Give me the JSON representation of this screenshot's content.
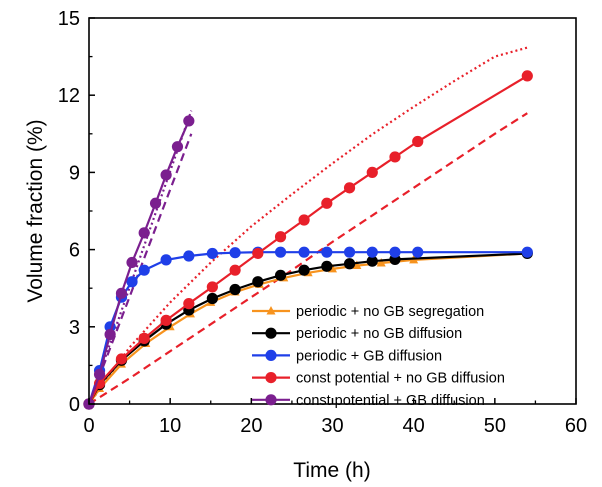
{
  "chart_data": {
    "type": "line",
    "xlabel": "Time (h)",
    "ylabel": "Volume fraction (%)",
    "xlim": [
      0,
      60
    ],
    "ylim": [
      0,
      15
    ],
    "xticks": [
      0,
      10,
      20,
      30,
      40,
      50,
      60
    ],
    "yticks": [
      0,
      3,
      6,
      9,
      12,
      15
    ],
    "legend_position": "bottom-right",
    "grid": false,
    "series": [
      {
        "name": "periodic + no GB segregation",
        "color": "#f7931e",
        "marker": "triangle",
        "x": [
          0,
          1.3,
          4,
          7,
          10,
          12.5,
          15,
          18,
          21,
          24,
          27,
          30,
          33,
          36,
          40,
          54
        ],
        "y": [
          0,
          0.6,
          1.55,
          2.35,
          3.0,
          3.5,
          3.95,
          4.35,
          4.65,
          4.9,
          5.1,
          5.25,
          5.38,
          5.48,
          5.6,
          5.85
        ]
      },
      {
        "name": "periodic + no GB diffusion",
        "color": "#000000",
        "marker": "circle",
        "x": [
          0,
          1.3,
          4,
          6.8,
          9.5,
          12.3,
          15.2,
          18,
          20.8,
          23.6,
          26.5,
          29.3,
          32.1,
          34.9,
          37.7,
          54
        ],
        "y": [
          0,
          0.75,
          1.7,
          2.45,
          3.1,
          3.65,
          4.1,
          4.45,
          4.75,
          5.0,
          5.2,
          5.35,
          5.45,
          5.55,
          5.62,
          5.85
        ]
      },
      {
        "name": "periodic + GB diffusion",
        "color": "#1f3fe8",
        "marker": "circle",
        "x": [
          0,
          1.3,
          2.6,
          4,
          5.3,
          6.8,
          9.5,
          12.3,
          15.2,
          18,
          20.8,
          23.6,
          26.5,
          29.3,
          32.1,
          34.9,
          37.7,
          40.5,
          54
        ],
        "y": [
          0,
          1.3,
          3.0,
          4.15,
          4.75,
          5.2,
          5.6,
          5.75,
          5.85,
          5.88,
          5.9,
          5.9,
          5.9,
          5.9,
          5.9,
          5.9,
          5.9,
          5.9,
          5.9
        ]
      },
      {
        "name": "const potential + no GB diffusion",
        "color": "#e8202a",
        "marker": "circle",
        "x": [
          0,
          1.3,
          4,
          6.8,
          9.5,
          12.3,
          15.2,
          18,
          20.8,
          23.6,
          26.5,
          29.3,
          32.1,
          34.9,
          37.7,
          40.5,
          54
        ],
        "y": [
          0,
          0.8,
          1.75,
          2.55,
          3.25,
          3.9,
          4.55,
          5.2,
          5.85,
          6.5,
          7.15,
          7.8,
          8.4,
          9.0,
          9.6,
          10.2,
          12.75
        ]
      },
      {
        "name": "const potential + GB diffusion",
        "color": "#7b1f8f",
        "marker": "circle",
        "x": [
          0,
          1.3,
          2.6,
          4,
          5.3,
          6.8,
          8.2,
          9.5,
          10.9,
          12.3
        ],
        "y": [
          0,
          1.15,
          2.7,
          4.3,
          5.5,
          6.65,
          7.8,
          8.9,
          10.0,
          11.0
        ]
      }
    ],
    "bounds": [
      {
        "color": "#e8202a",
        "style": "dotted",
        "x": [
          0,
          5,
          10,
          15,
          20,
          25,
          30,
          35,
          40,
          45,
          50,
          54
        ],
        "y": [
          0,
          2.2,
          3.95,
          5.5,
          6.9,
          8.15,
          9.35,
          10.5,
          11.55,
          12.55,
          13.5,
          13.85
        ]
      },
      {
        "color": "#e8202a",
        "style": "dashed",
        "x": [
          0,
          5,
          10,
          15,
          20,
          25,
          30,
          35,
          40,
          45,
          50,
          54
        ],
        "y": [
          0,
          1.0,
          2.05,
          3.1,
          4.15,
          5.2,
          6.3,
          7.35,
          8.4,
          9.45,
          10.5,
          11.3
        ]
      },
      {
        "color": "#7b1f8f",
        "style": "dotted",
        "x": [
          0,
          12.6
        ],
        "y": [
          0,
          11.4
        ]
      },
      {
        "color": "#7b1f8f",
        "style": "dashed",
        "x": [
          0,
          12.6
        ],
        "y": [
          0,
          10.5
        ]
      }
    ]
  }
}
